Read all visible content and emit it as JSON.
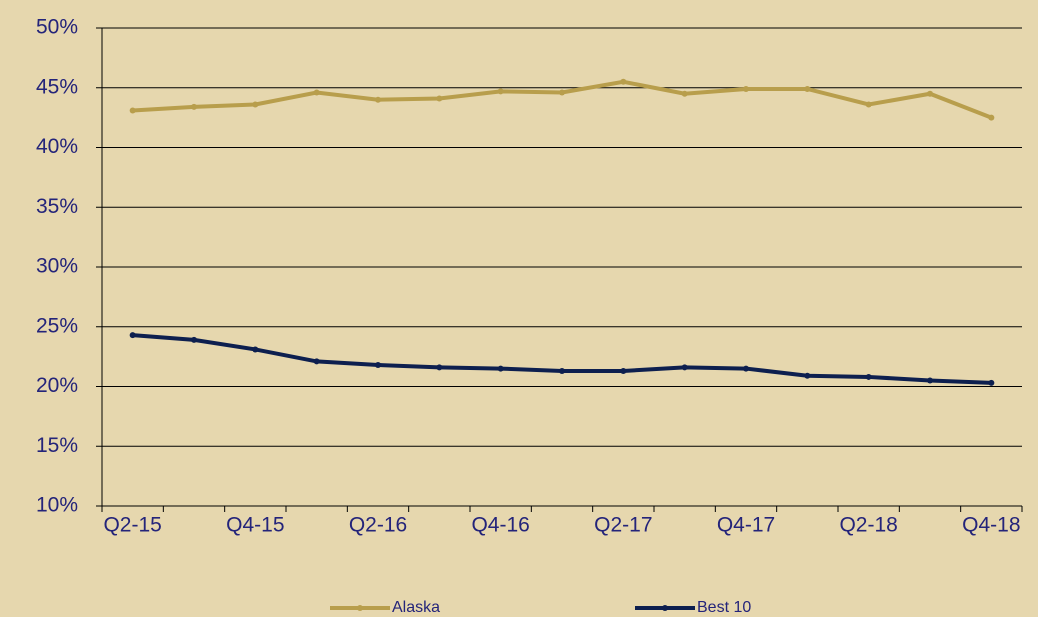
{
  "chart_data": {
    "type": "line",
    "categories": [
      "Q2-15",
      null,
      "Q4-15",
      null,
      "Q2-16",
      null,
      "Q4-16",
      null,
      "Q2-17",
      null,
      "Q4-17",
      null,
      "Q2-18",
      null,
      "Q4-18"
    ],
    "series": [
      {
        "name": "Alaska",
        "color": "#b89e4c",
        "values": [
          43.1,
          43.4,
          43.6,
          44.6,
          44.0,
          44.1,
          44.7,
          44.6,
          45.5,
          44.5,
          44.9,
          44.9,
          43.6,
          44.5,
          42.5
        ]
      },
      {
        "name": "Best 10",
        "color": "#0d1f4f",
        "values": [
          24.3,
          23.9,
          23.1,
          22.1,
          21.8,
          21.6,
          21.5,
          21.3,
          21.3,
          21.6,
          21.5,
          20.9,
          20.8,
          20.5,
          20.3
        ]
      }
    ],
    "ylim": [
      10,
      50
    ],
    "yticks": [
      {
        "value": 10,
        "label": "10%"
      },
      {
        "value": 15,
        "label": "15%"
      },
      {
        "value": 20,
        "label": "20%"
      },
      {
        "value": 25,
        "label": "25%"
      },
      {
        "value": 30,
        "label": "30%"
      },
      {
        "value": 35,
        "label": "35%"
      },
      {
        "value": 40,
        "label": "40%"
      },
      {
        "value": 45,
        "label": "45%"
      },
      {
        "value": 50,
        "label": "50%"
      }
    ],
    "grid": true
  }
}
